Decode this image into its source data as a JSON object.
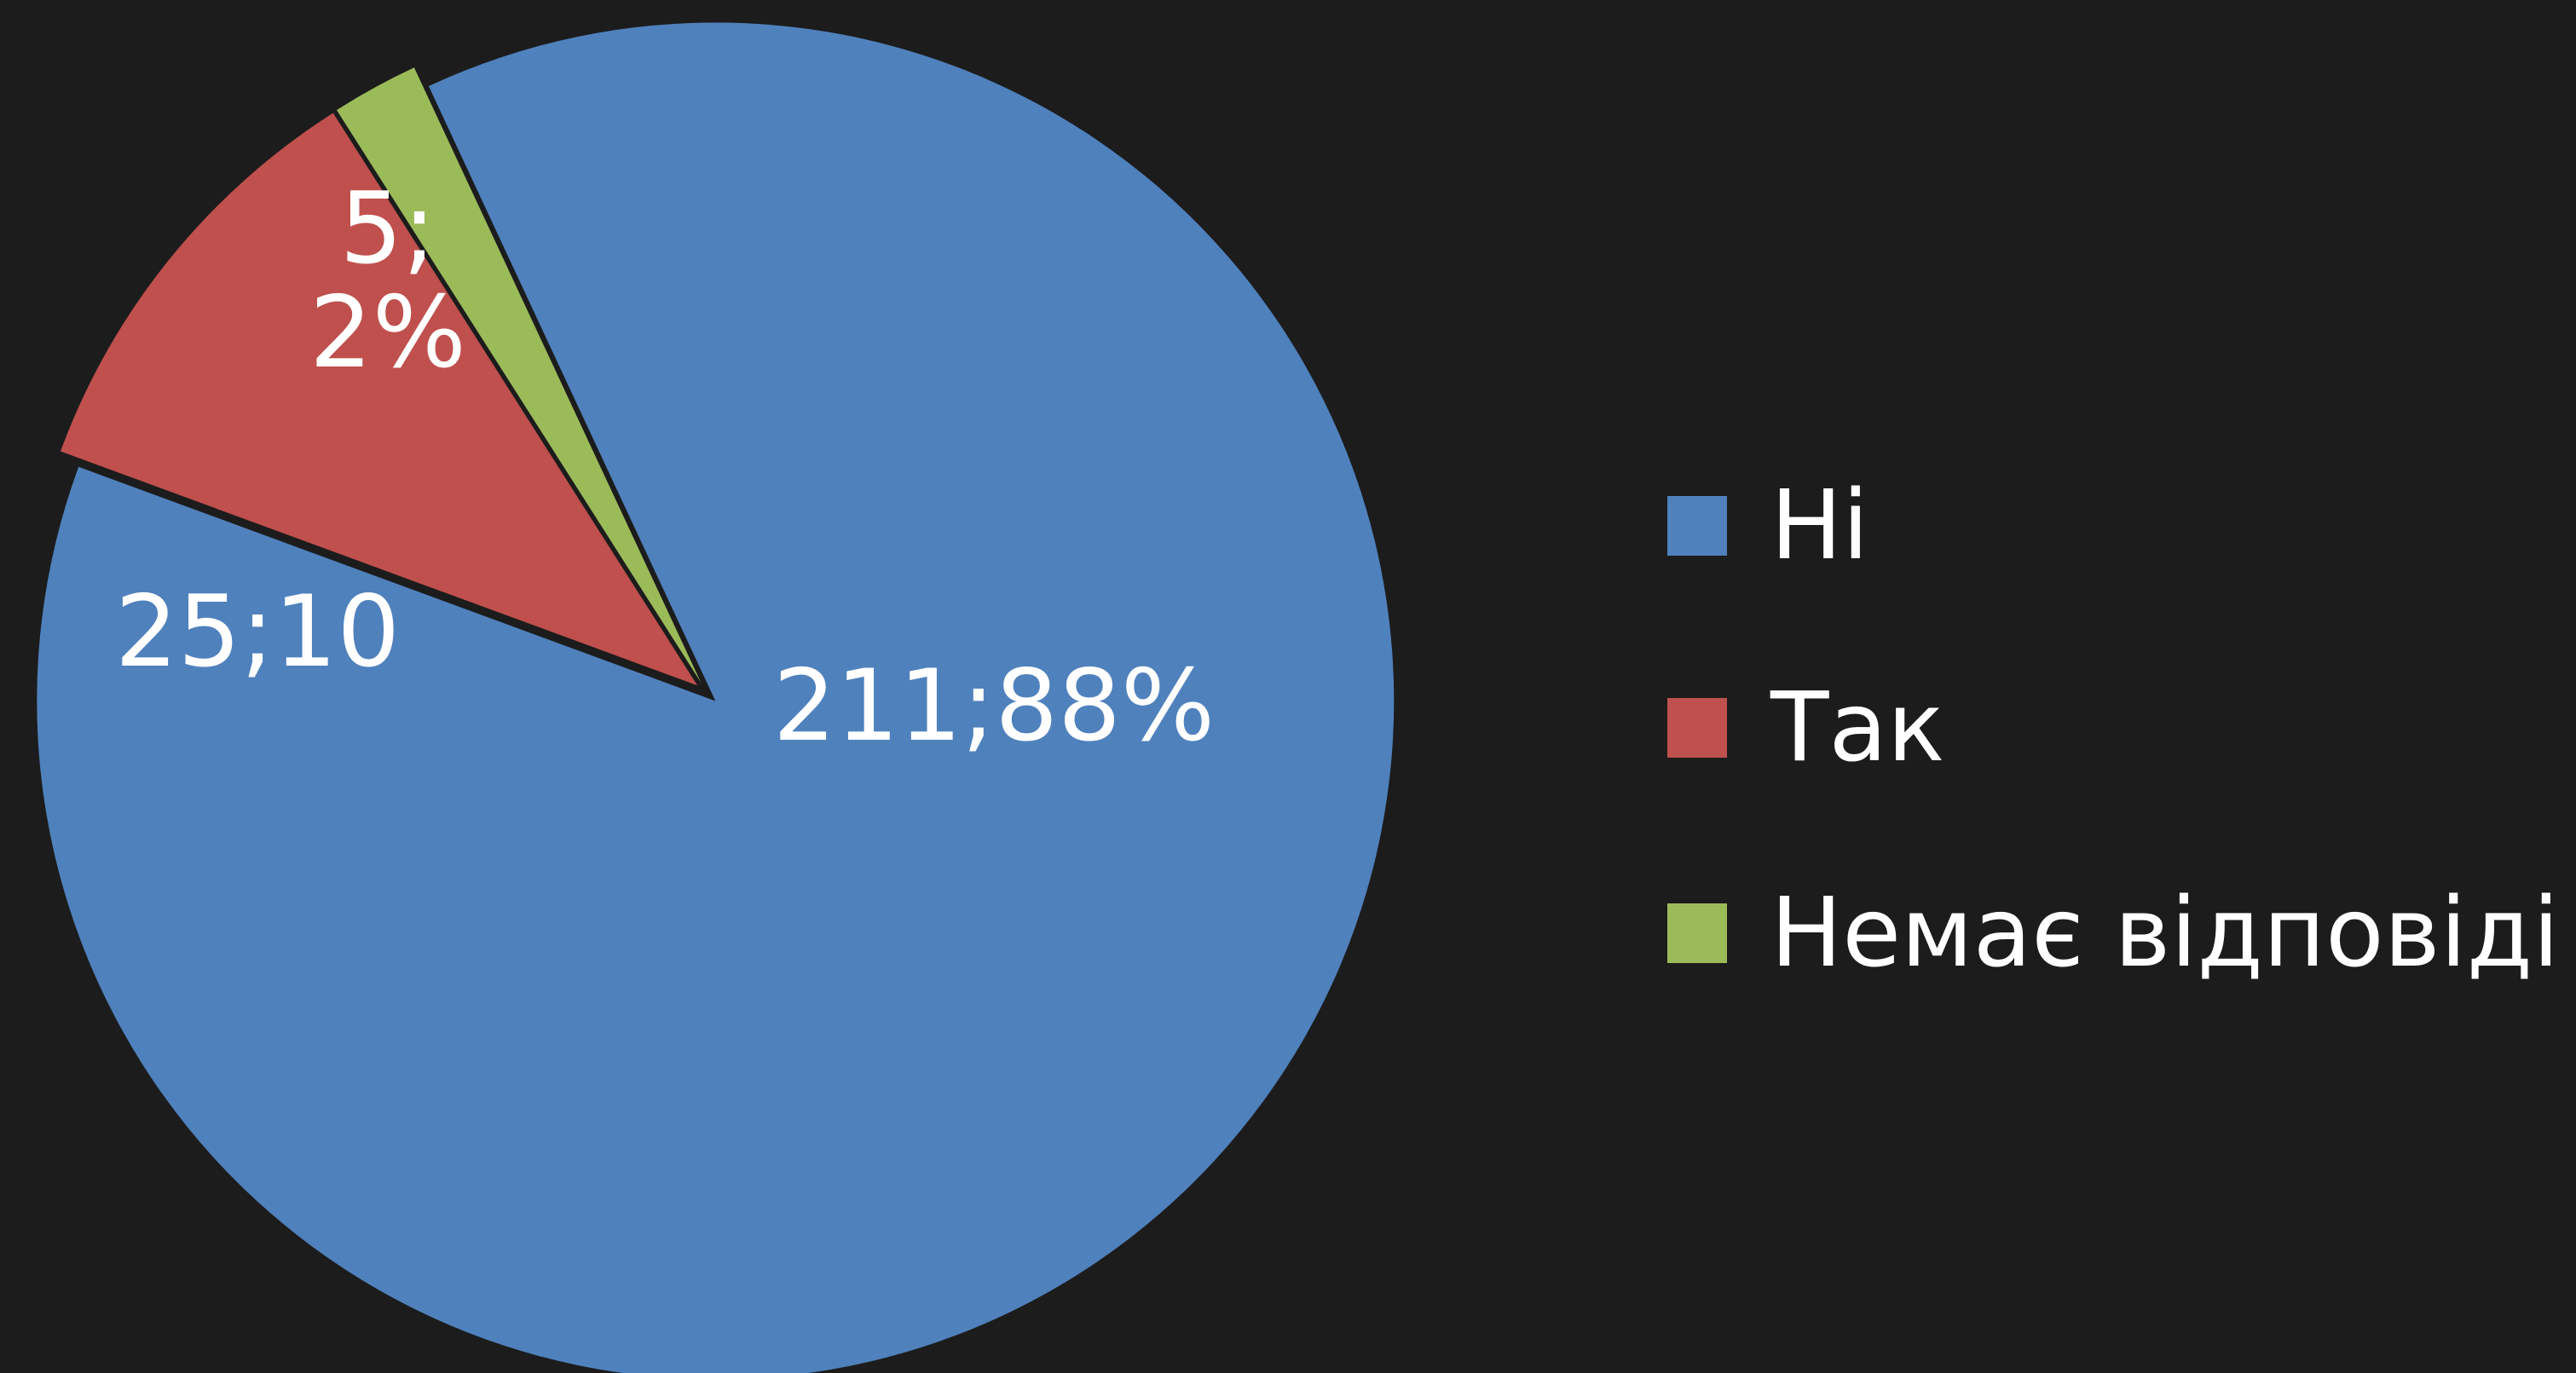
{
  "chart_data": {
    "type": "pie",
    "categories": [
      "Ні",
      "Так",
      "Немає відповіді"
    ],
    "values": [
      211,
      25,
      5
    ],
    "value_labels": [
      "211;88%",
      "25;10",
      "5;2%"
    ],
    "colors": [
      "#4f81bd",
      "#c0504d",
      "#9bbb59"
    ],
    "legend": "right"
  }
}
